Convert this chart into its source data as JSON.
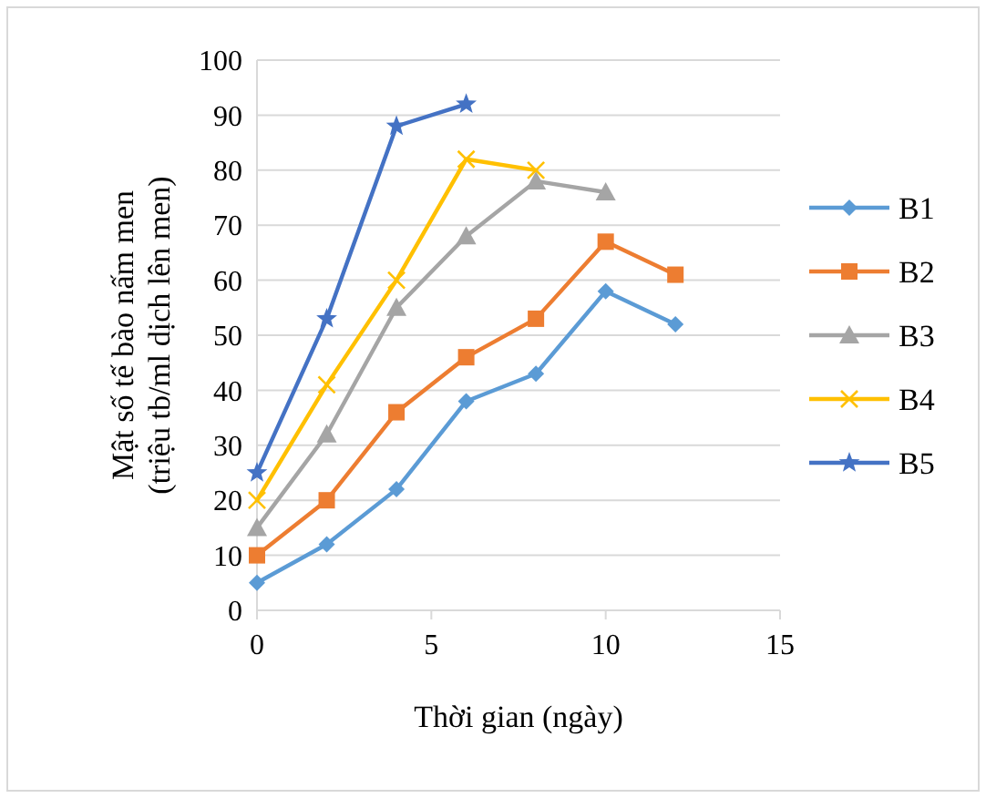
{
  "chart_data": {
    "type": "line",
    "xlabel": "Thời gian (ngày)",
    "ylabel": "Mật số tế bào nấm men\n(triệu tb/ml dịch lên men)",
    "xlim": [
      0,
      15
    ],
    "xticks": [
      0,
      5,
      10,
      15
    ],
    "ylim": [
      0,
      100
    ],
    "yticks": [
      0,
      10,
      20,
      30,
      40,
      50,
      60,
      70,
      80,
      90,
      100
    ],
    "grid": "y",
    "legend": "right",
    "line_style": "solid",
    "series": [
      {
        "name": "B1",
        "color": "#5b9bd5",
        "marker": "diamond",
        "x": [
          0,
          2,
          4,
          6,
          8,
          10,
          12
        ],
        "values": [
          5,
          12,
          22,
          38,
          43,
          58,
          52
        ]
      },
      {
        "name": "B2",
        "color": "#ed7d31",
        "marker": "square",
        "x": [
          0,
          2,
          4,
          6,
          8,
          10,
          12
        ],
        "values": [
          10,
          20,
          36,
          46,
          53,
          67,
          61
        ]
      },
      {
        "name": "B3",
        "color": "#a5a5a5",
        "marker": "triangle",
        "x": [
          0,
          2,
          4,
          6,
          8,
          10
        ],
        "values": [
          15,
          32,
          55,
          68,
          78,
          76
        ]
      },
      {
        "name": "B4",
        "color": "#ffc000",
        "marker": "cross",
        "x": [
          0,
          2,
          4,
          6,
          8
        ],
        "values": [
          20,
          41,
          60,
          82,
          80
        ]
      },
      {
        "name": "B5",
        "color": "#4472c4",
        "marker": "star",
        "x": [
          0,
          2,
          4,
          6
        ],
        "values": [
          25,
          53,
          88,
          92
        ]
      }
    ]
  }
}
